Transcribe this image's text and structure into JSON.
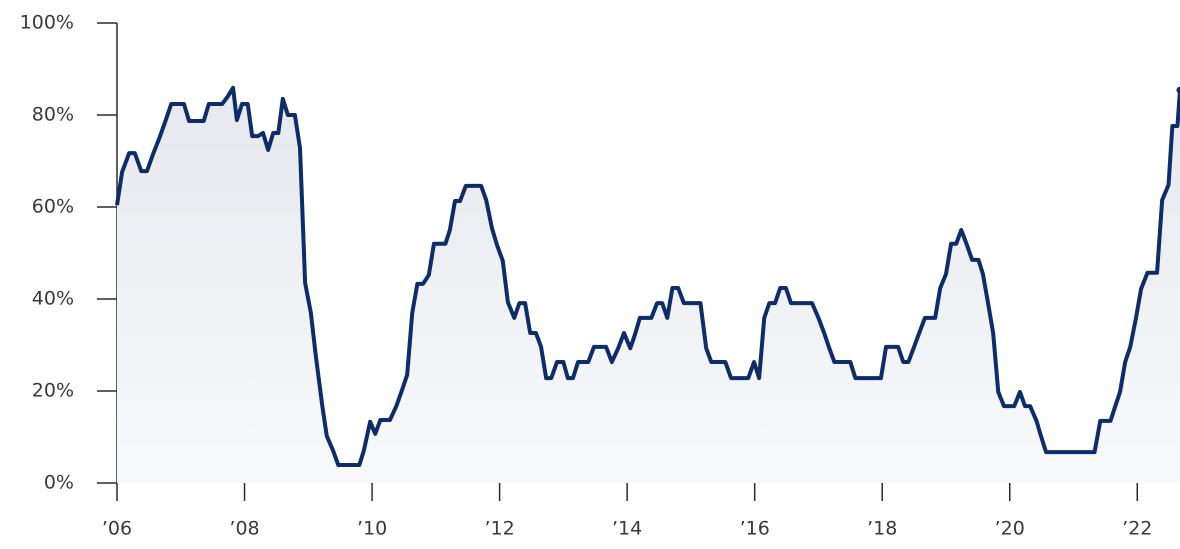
{
  "chart_data": {
    "type": "line",
    "x": [
      2006,
      2006.08,
      2006.19,
      2006.28,
      2006.38,
      2006.47,
      2006.56,
      2006.67,
      2006.77,
      2006.85,
      2007.05,
      2007.13,
      2007.36,
      2007.44,
      2007.65,
      2007.74,
      2007.82,
      2007.88,
      2007.96,
      2008.05,
      2008.12,
      2008.21,
      2008.29,
      2008.37,
      2008.45,
      2008.53,
      2008.6,
      2008.68,
      2008.79,
      2008.87,
      2008.95,
      2009.04,
      2009.12,
      2009.22,
      2009.29,
      2009.39,
      2009.47,
      2009.8,
      2009.87,
      2009.97,
      2010.05,
      2010.13,
      2010.28,
      2010.38,
      2010.47,
      2010.55,
      2010.63,
      2010.71,
      2010.8,
      2010.89,
      2010.97,
      2011.15,
      2011.22,
      2011.3,
      2011.38,
      2011.47,
      2011.71,
      2011.79,
      2011.88,
      2011.96,
      2012.05,
      2012.13,
      2012.23,
      2012.31,
      2012.4,
      2012.48,
      2012.57,
      2012.65,
      2012.73,
      2012.81,
      2012.9,
      2013,
      2013.07,
      2013.15,
      2013.23,
      2013.39,
      2013.48,
      2013.67,
      2013.76,
      2013.86,
      2013.95,
      2014.05,
      2014.13,
      2014.2,
      2014.38,
      2014.47,
      2014.55,
      2014.63,
      2014.71,
      2014.8,
      2014.89,
      2015.15,
      2015.24,
      2015.32,
      2015.54,
      2015.63,
      2015.9,
      2015.99,
      2016.07,
      2016.15,
      2016.23,
      2016.32,
      2016.4,
      2016.49,
      2016.57,
      2016.9,
      2017,
      2017.09,
      2017.17,
      2017.25,
      2017.5,
      2017.58,
      2017.98,
      2018.06,
      2018.25,
      2018.33,
      2018.41,
      2018.5,
      2018.58,
      2018.67,
      2018.83,
      2018.91,
      2019,
      2019.08,
      2019.16,
      2019.24,
      2019.33,
      2019.41,
      2019.51,
      2019.58,
      2019.66,
      2019.74,
      2019.82,
      2019.91,
      2020.07,
      2020.16,
      2020.24,
      2020.32,
      2020.42,
      2020.49,
      2020.57,
      2021.33,
      2021.42,
      2021.58,
      2021.65,
      2021.73,
      2021.81,
      2021.89,
      2021.98,
      2022.06,
      2022.16,
      2022.31,
      2022.39,
      2022.49,
      2022.55,
      2022.63,
      2022.67
    ],
    "series": [
      {
        "color": "#0c2c6a",
        "values": [
          60.4,
          67.6,
          71.7,
          71.7,
          67.8,
          67.8,
          71.3,
          75.2,
          79.1,
          82.4,
          82.4,
          78.7,
          78.7,
          82.4,
          82.4,
          84.1,
          85.9,
          78.9,
          82.4,
          82.4,
          75.4,
          75.4,
          76.1,
          72.4,
          76.1,
          76.1,
          83.5,
          80,
          80,
          72.8,
          43.5,
          37,
          27.4,
          16.7,
          10.2,
          7,
          3.9,
          3.9,
          7,
          13.3,
          10.7,
          13.7,
          13.7,
          16.7,
          20.2,
          23.5,
          37,
          43.3,
          43.3,
          45.2,
          52,
          52,
          55,
          61.3,
          61.3,
          64.6,
          64.6,
          61.5,
          55.4,
          51.7,
          48.3,
          39.3,
          35.9,
          39.1,
          39.1,
          32.6,
          32.6,
          29.6,
          22.8,
          22.8,
          26.3,
          26.3,
          22.8,
          22.8,
          26.3,
          26.3,
          29.6,
          29.6,
          26.3,
          29.3,
          32.6,
          29.3,
          32.6,
          35.9,
          35.9,
          39.1,
          39.1,
          35.9,
          42.4,
          42.4,
          39.1,
          39.1,
          29.3,
          26.3,
          26.3,
          22.8,
          22.8,
          26.3,
          22.8,
          35.9,
          39.1,
          39.1,
          42.4,
          42.4,
          39.1,
          39.1,
          35.9,
          32.6,
          29.3,
          26.3,
          26.3,
          22.8,
          22.8,
          29.6,
          29.6,
          26.3,
          26.3,
          29.6,
          32.6,
          35.9,
          35.9,
          42.4,
          45.4,
          52,
          52,
          55,
          51.7,
          48.5,
          48.5,
          45.4,
          39.1,
          32.6,
          19.8,
          16.7,
          16.7,
          19.8,
          16.7,
          16.7,
          13.5,
          10.2,
          6.7,
          6.7,
          13.5,
          13.5,
          16.5,
          19.8,
          26.3,
          29.6,
          35.9,
          42.2,
          45.7,
          45.7,
          61.5,
          64.8,
          77.6,
          77.6,
          85.4
        ]
      }
    ],
    "xlim": [
      2006,
      2022.67
    ],
    "xticks": [
      {
        "value": 2006,
        "label": "’06"
      },
      {
        "value": 2008,
        "label": "’08"
      },
      {
        "value": 2010,
        "label": "’10"
      },
      {
        "value": 2012,
        "label": "’12"
      },
      {
        "value": 2014,
        "label": "’14"
      },
      {
        "value": 2016,
        "label": "’16"
      },
      {
        "value": 2018,
        "label": "’18"
      },
      {
        "value": 2020,
        "label": "’20"
      },
      {
        "value": 2022,
        "label": "’22"
      }
    ],
    "ylim": [
      0,
      100
    ],
    "yticks": [
      {
        "value": 0,
        "label": "0%"
      },
      {
        "value": 20,
        "label": "20%"
      },
      {
        "value": 40,
        "label": "40%"
      },
      {
        "value": 60,
        "label": "60%"
      },
      {
        "value": 80,
        "label": "80%"
      },
      {
        "value": 100,
        "label": "100%"
      }
    ]
  }
}
